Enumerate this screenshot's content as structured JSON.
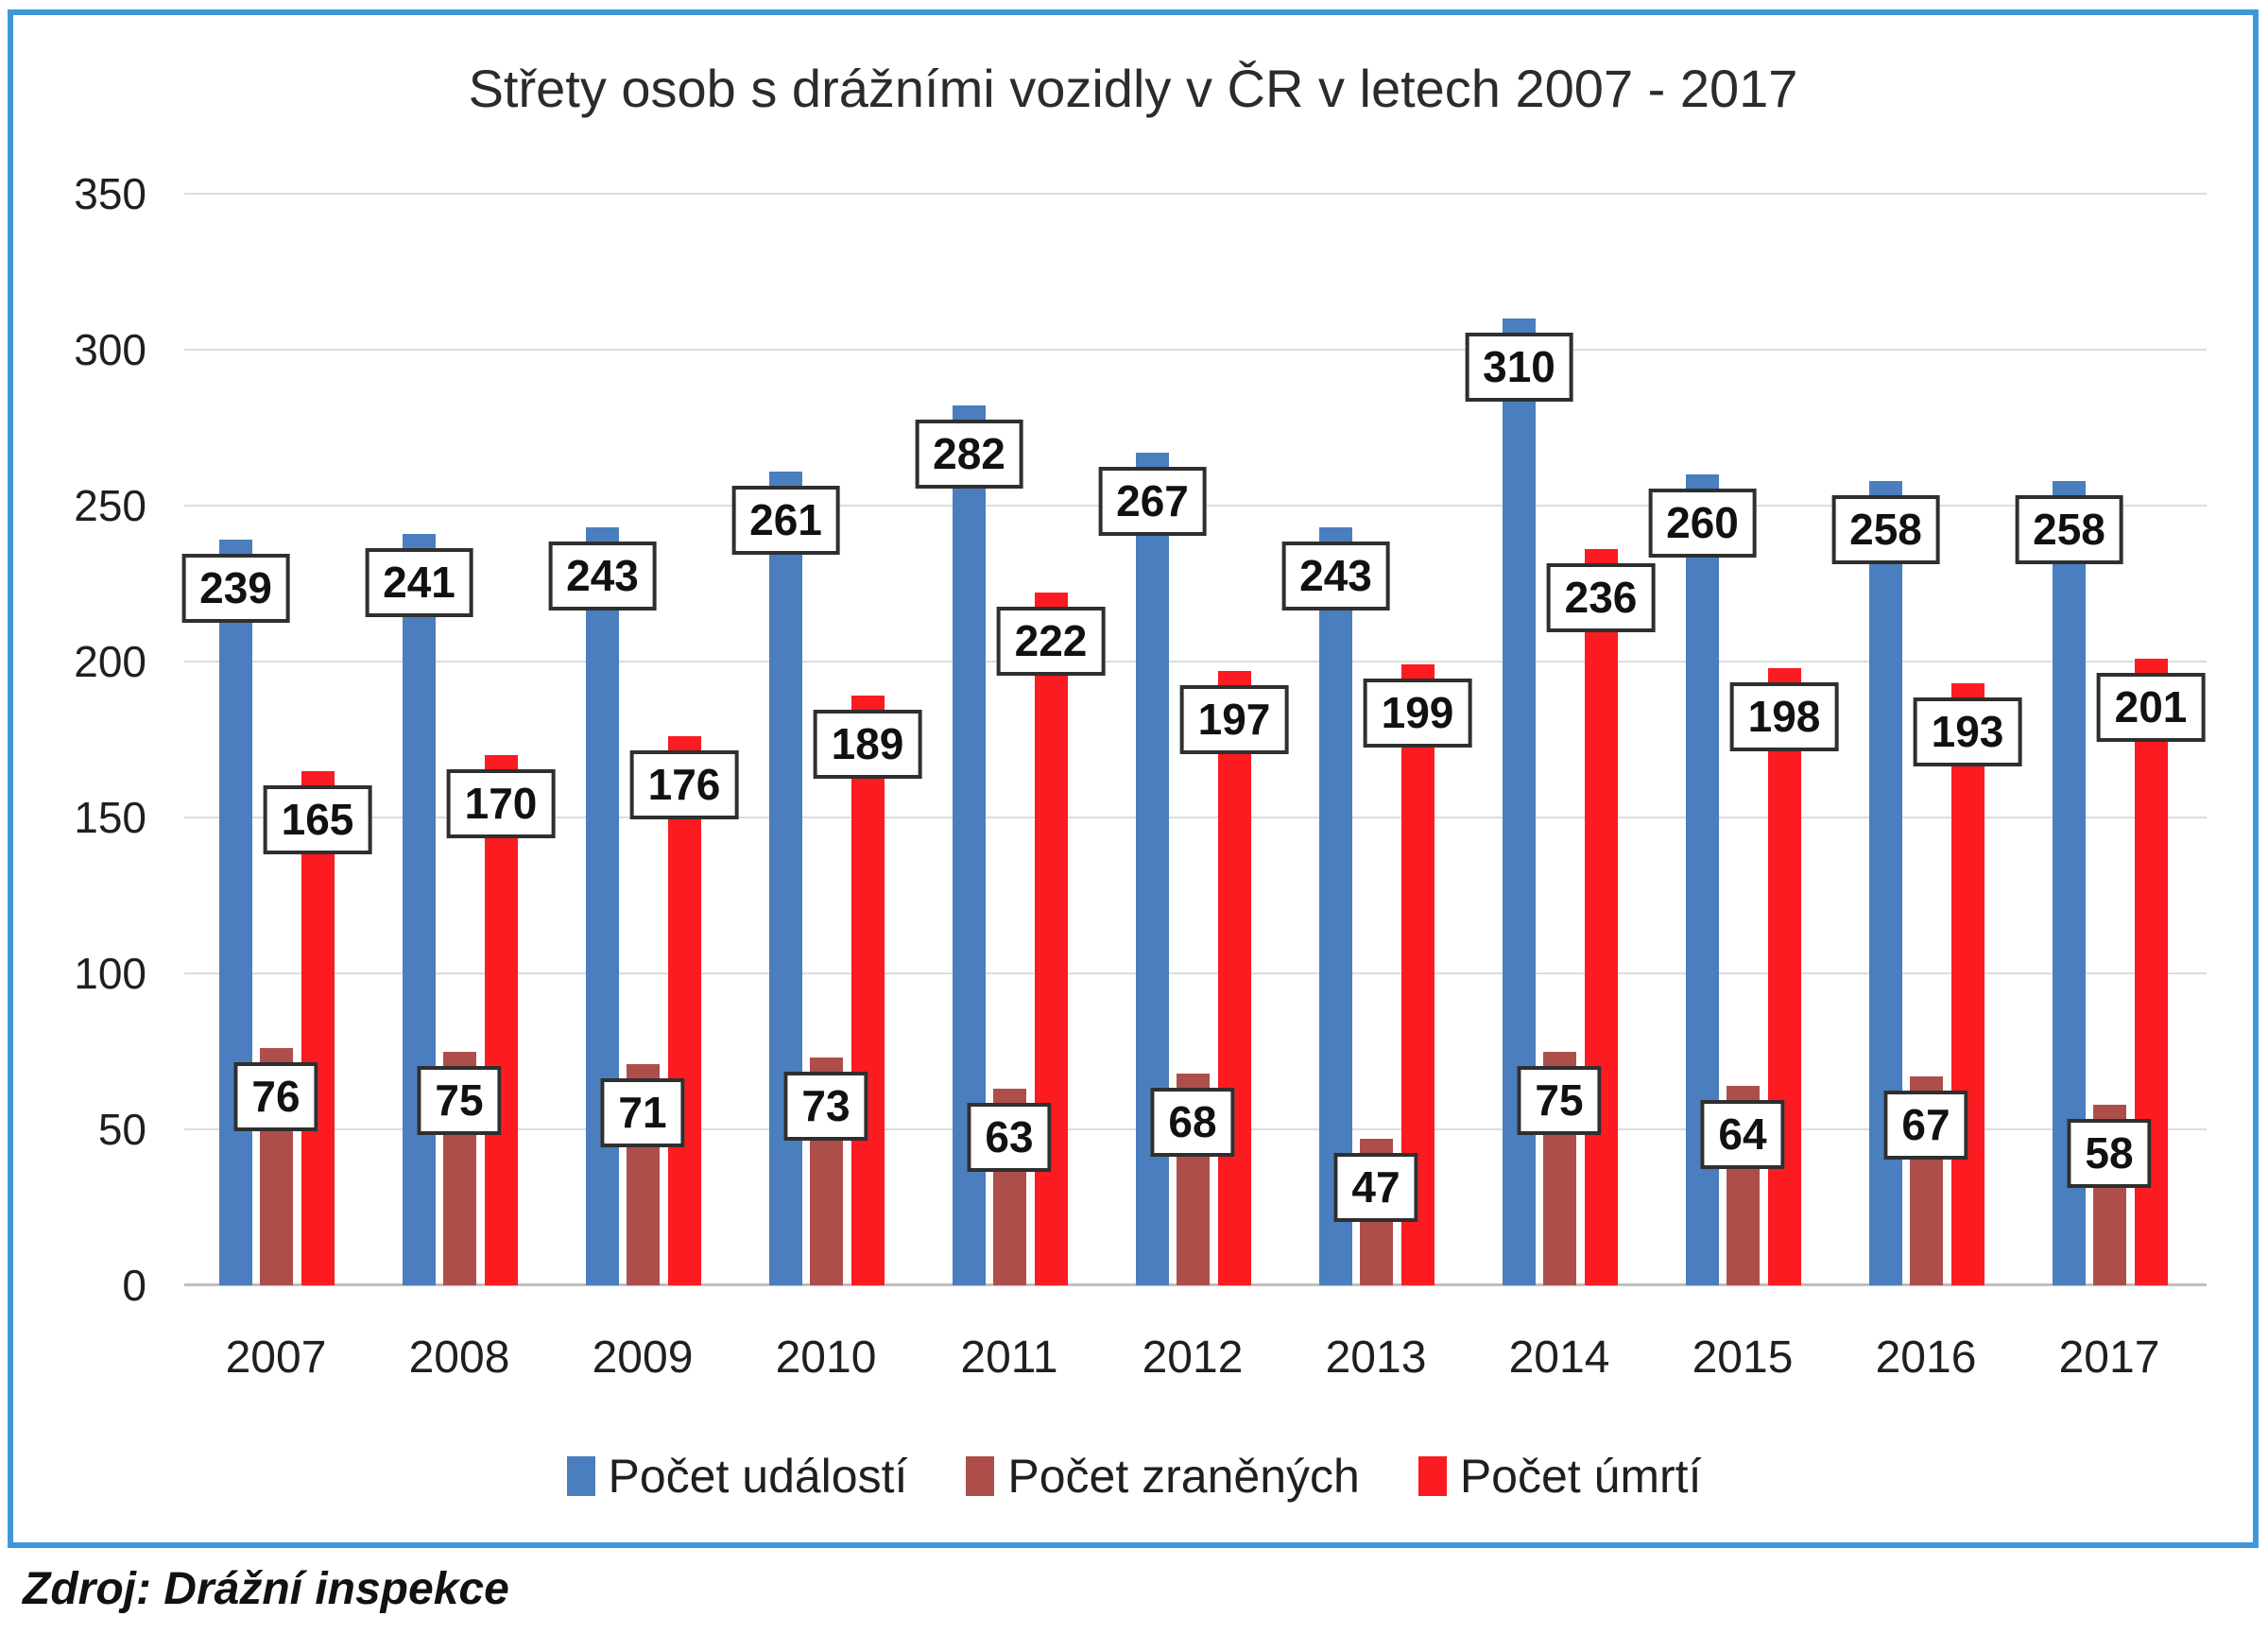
{
  "chart_data": {
    "type": "bar",
    "title": "Střety osob s drážními vozidly v ČR v letech 2007 - 2017",
    "categories": [
      "2007",
      "2008",
      "2009",
      "2010",
      "2011",
      "2012",
      "2013",
      "2014",
      "2015",
      "2016",
      "2017"
    ],
    "series": [
      {
        "name": "Počet událostí",
        "color": "#4A7EBE",
        "values": [
          239,
          241,
          243,
          261,
          282,
          267,
          243,
          310,
          260,
          258,
          258
        ]
      },
      {
        "name": "Počet zraněných",
        "color": "#AE4E4B",
        "values": [
          76,
          75,
          71,
          73,
          63,
          68,
          47,
          75,
          64,
          67,
          58
        ]
      },
      {
        "name": "Počet úmrtí",
        "color": "#FB1B20",
        "values": [
          165,
          170,
          176,
          189,
          222,
          197,
          199,
          236,
          198,
          193,
          201
        ]
      }
    ],
    "xlabel": "",
    "ylabel": "",
    "ylim": [
      0,
      350
    ],
    "yticks": [
      0,
      50,
      100,
      150,
      200,
      250,
      300,
      350
    ],
    "grid": true,
    "legend_position": "bottom",
    "data_labels": "boxed"
  },
  "source_note": "Zdroj: Drážní inspekce",
  "colors": {
    "frame_border": "#3E97D9",
    "gridline": "#DCDCDC",
    "axis_line": "#BFBFBF",
    "label_box_border": "#2F2F2F",
    "label_box_fill": "#FFFFFF"
  }
}
